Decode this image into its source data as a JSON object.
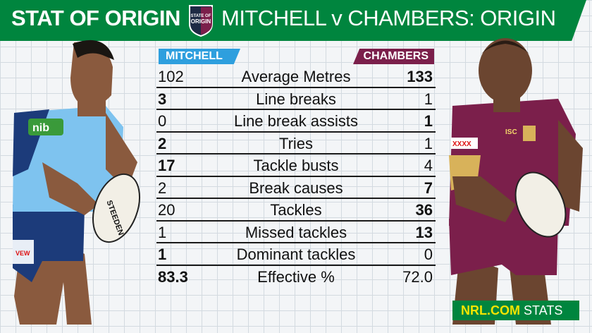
{
  "header": {
    "title_bold": "STAT OF ORIGIN",
    "title_light": "MITCHELL v CHAMBERS: ORIGIN",
    "logo_text": [
      "STATE OF",
      "ORIGIN"
    ]
  },
  "players": {
    "left_name": "MITCHELL",
    "right_name": "CHAMBERS"
  },
  "stats": [
    {
      "left": "102",
      "label": "Average Metres",
      "right": "133",
      "bold": "right"
    },
    {
      "left": "3",
      "label": "Line breaks",
      "right": "1",
      "bold": "left"
    },
    {
      "left": "0",
      "label": "Line break assists",
      "right": "1",
      "bold": "right"
    },
    {
      "left": "2",
      "label": "Tries",
      "right": "1",
      "bold": "left"
    },
    {
      "left": "17",
      "label": "Tackle busts",
      "right": "4",
      "bold": "left"
    },
    {
      "left": "2",
      "label": "Break causes",
      "right": "7",
      "bold": "right"
    },
    {
      "left": "20",
      "label": "Tackles",
      "right": "36",
      "bold": "right"
    },
    {
      "left": "1",
      "label": "Missed tackles",
      "right": "13",
      "bold": "right"
    },
    {
      "left": "1",
      "label": "Dominant tackles",
      "right": "0",
      "bold": "left"
    },
    {
      "left": "83.3",
      "label": "Effective %",
      "right": "72.0",
      "bold": "left"
    }
  ],
  "footer": {
    "brand": "NRL.COM",
    "suffix": " STATS"
  },
  "colors": {
    "header_green": "#00853e",
    "nsw_blue": "#2e9fde",
    "qld_maroon": "#7b1f4b",
    "nrl_yellow": "#f5e400"
  }
}
